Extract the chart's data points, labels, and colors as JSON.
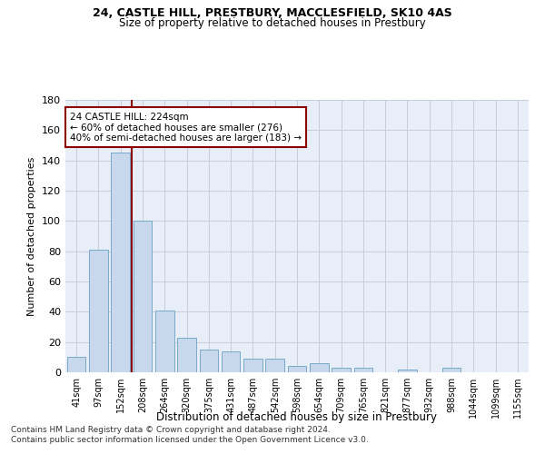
{
  "title1": "24, CASTLE HILL, PRESTBURY, MACCLESFIELD, SK10 4AS",
  "title2": "Size of property relative to detached houses in Prestbury",
  "xlabel": "Distribution of detached houses by size in Prestbury",
  "ylabel": "Number of detached properties",
  "bar_values": [
    10,
    81,
    145,
    100,
    41,
    23,
    15,
    14,
    9,
    9,
    4,
    6,
    3,
    3,
    0,
    2,
    0,
    3,
    0,
    0,
    0
  ],
  "bar_labels": [
    "41sqm",
    "97sqm",
    "152sqm",
    "208sqm",
    "264sqm",
    "320sqm",
    "375sqm",
    "431sqm",
    "487sqm",
    "542sqm",
    "598sqm",
    "654sqm",
    "709sqm",
    "765sqm",
    "821sqm",
    "877sqm",
    "932sqm",
    "988sqm",
    "1044sqm",
    "1099sqm",
    "1155sqm"
  ],
  "bar_color": "#c8d8ec",
  "bar_edgecolor": "#7aaac8",
  "grid_color": "#c8ccd8",
  "bg_color": "#e8eef8",
  "annotation_text": "24 CASTLE HILL: 224sqm\n← 60% of detached houses are smaller (276)\n40% of semi-detached houses are larger (183) →",
  "red_line_x": 2.5,
  "ylim": [
    0,
    180
  ],
  "yticks": [
    0,
    20,
    40,
    60,
    80,
    100,
    120,
    140,
    160,
    180
  ],
  "footnote1": "Contains HM Land Registry data © Crown copyright and database right 2024.",
  "footnote2": "Contains public sector information licensed under the Open Government Licence v3.0."
}
